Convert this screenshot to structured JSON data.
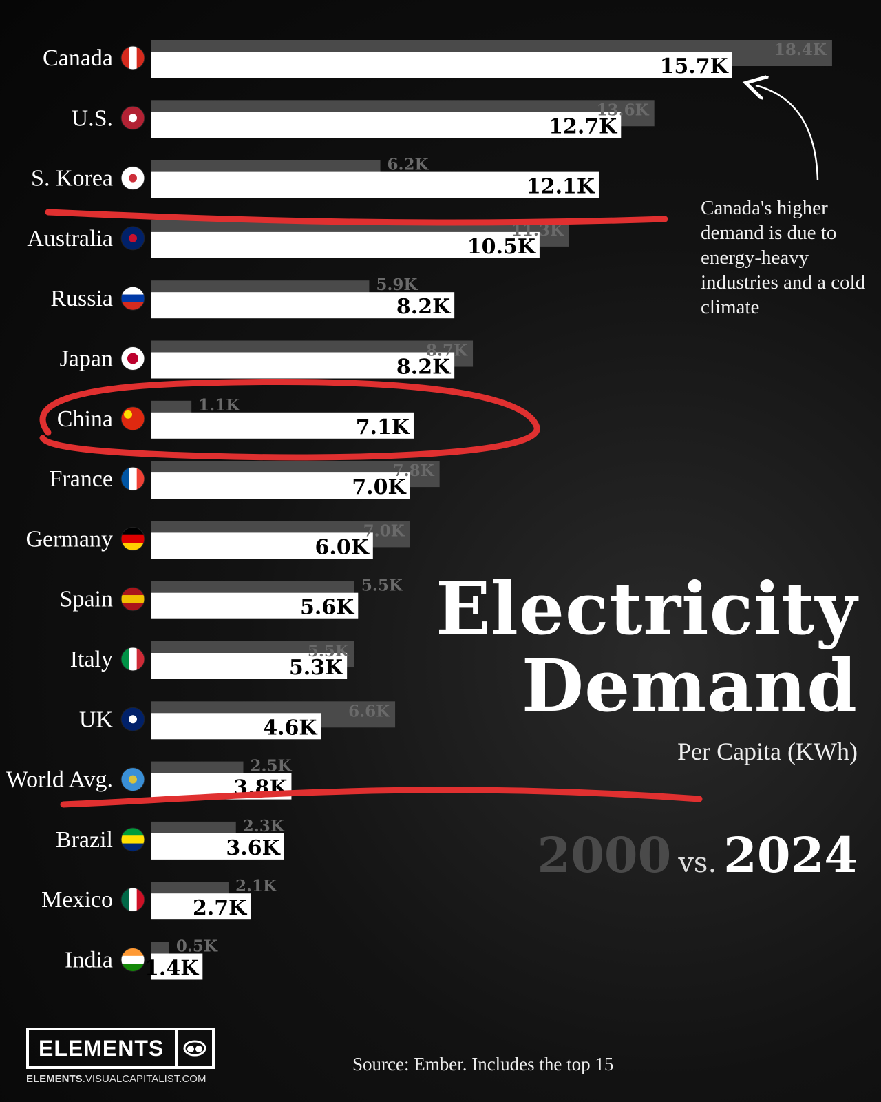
{
  "chart_data": {
    "type": "bar",
    "title": "Electricity Demand",
    "subtitle": "Per Capita (KWh)",
    "legend": [
      "2000",
      "vs.",
      "2024"
    ],
    "categories": [
      "Canada",
      "U.S.",
      "S. Korea",
      "Australia",
      "Russia",
      "Japan",
      "China",
      "France",
      "Germany",
      "Spain",
      "Italy",
      "UK",
      "World Avg.",
      "Brazil",
      "Mexico",
      "India"
    ],
    "series": [
      {
        "name": "2000",
        "color": "#4a4a4a",
        "values": [
          18.4,
          13.6,
          6.2,
          11.3,
          5.9,
          8.7,
          1.1,
          7.8,
          7.0,
          5.5,
          5.5,
          6.6,
          2.5,
          2.3,
          2.1,
          0.5
        ],
        "labels": [
          "18.4K",
          "13.6K",
          "6.2K",
          "11.3K",
          "5.9K",
          "8.7K",
          "1.1K",
          "7.8K",
          "7.0K",
          "5.5K",
          "5.5K",
          "6.6K",
          "2.5K",
          "2.3K",
          "2.1K",
          "0.5K"
        ]
      },
      {
        "name": "2024",
        "color": "#ffffff",
        "values": [
          15.7,
          12.7,
          12.1,
          10.5,
          8.2,
          8.2,
          7.1,
          7.0,
          6.0,
          5.6,
          5.3,
          4.6,
          3.8,
          3.6,
          2.7,
          1.4
        ],
        "labels": [
          "15.7K",
          "12.7K",
          "12.1K",
          "10.5K",
          "8.2K",
          "8.2K",
          "7.1K",
          "7.0K",
          "6.0K",
          "5.6K",
          "5.3K",
          "4.6K",
          "3.8K",
          "3.6K",
          "2.7K",
          "1.4K"
        ]
      }
    ],
    "annotation": "Canada's higher demand is due to energy-heavy industries and a cold climate",
    "highlight_color": "#e03030"
  },
  "title": {
    "line1": "Electricity",
    "line2": "Demand",
    "subtitle": "Per Capita (KWh)"
  },
  "years": {
    "a": "2000",
    "vs": "vs.",
    "b": "2024"
  },
  "annotation": "Canada's higher demand is due to energy-heavy industries and a cold climate",
  "logo": {
    "name": "ELEMENTS",
    "url_bold": "ELEMENTS",
    "url_rest": ".VISUALCAPITALIST.COM"
  },
  "source": "Source: Ember. Includes the top 15"
}
